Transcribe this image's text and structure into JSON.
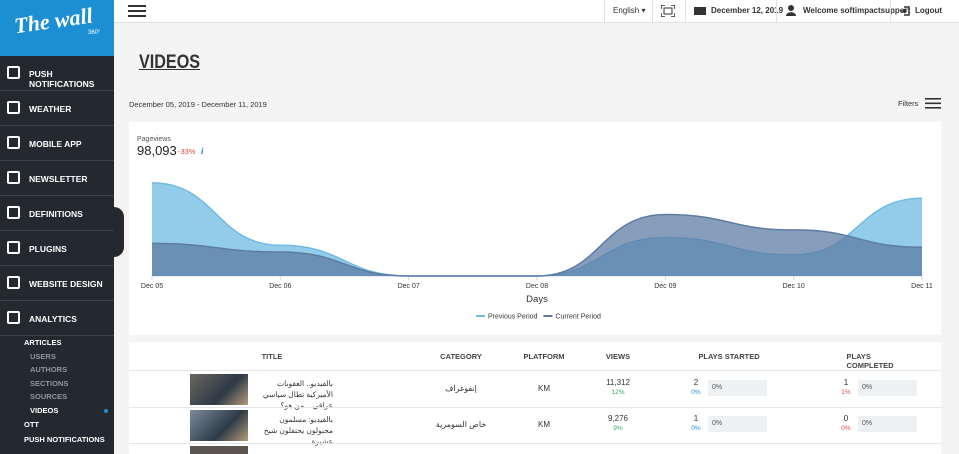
{
  "sidebar": {
    "logo": "The wall",
    "logo_sub": "360°",
    "menu": [
      "PUSH NOTIFICATIONS",
      "WEATHER",
      "MOBILE APP",
      "NEWSLETTER",
      "DEFINITIONS",
      "PLUGINS",
      "WEBSITE DESIGN",
      "ANALYTICS"
    ],
    "submenu": [
      "ARTICLES",
      "USERS",
      "AUTHORS",
      "SECTIONS",
      "SOURCES",
      "VIDEOS",
      "OTT",
      "PUSH NOTIFICATIONS"
    ]
  },
  "topbar": {
    "language": "English",
    "date": "December 12, 2019",
    "welcome": "Welcome softimpactsupport",
    "logout": "Logout"
  },
  "page": {
    "title": "VIDEOS",
    "date_range": "December 05, 2019 - December 11, 2019",
    "filters": "Filters"
  },
  "chart_data": {
    "type": "area",
    "title": "Pageviews",
    "total": "98,093",
    "change": "-33%",
    "info": "i",
    "xlabel": "Days",
    "categories": [
      "Dec 05",
      "Dec 06",
      "Dec 07",
      "Dec 08",
      "Dec 09",
      "Dec 10",
      "Dec 11"
    ],
    "series": [
      {
        "name": "Previous Period",
        "color": "#6fbbe2",
        "values": [
          97,
          32,
          0,
          0,
          40,
          22,
          81
        ]
      },
      {
        "name": "Current Period",
        "color": "#5d7ca4",
        "values": [
          34,
          25,
          0,
          0,
          64,
          48,
          30
        ]
      }
    ],
    "ylim": [
      0,
      100
    ],
    "legend": "bottom"
  },
  "table": {
    "columns": [
      "TITLE",
      "CATEGORY",
      "PLATFORM",
      "VIEWS",
      "PLAYS STARTED",
      "PLAYS COMPLETED"
    ],
    "rows": [
      {
        "title": "بالفيديو.. العقوبات الأميركية تطال سياسي عراقي... من هو؟",
        "category": "إنفوغراف",
        "platform": "KM",
        "views": "11,312",
        "views_change": "12%",
        "plays_started": "2",
        "plays_started_pct": "0%",
        "plays_started_bar": "0%",
        "plays_completed": "1",
        "plays_completed_pct": "1%",
        "plays_completed_bar": "0%"
      },
      {
        "title": "بالفيديو: مسلمون مجبولون يحتفلون شيخ عشيرة",
        "category": "خاص السومرية",
        "platform": "KM",
        "views": "9,276",
        "views_change": "9%",
        "plays_started": "1",
        "plays_started_pct": "0%",
        "plays_started_bar": "0%",
        "plays_completed": "0",
        "plays_completed_pct": "0%",
        "plays_completed_bar": "0%"
      }
    ]
  }
}
